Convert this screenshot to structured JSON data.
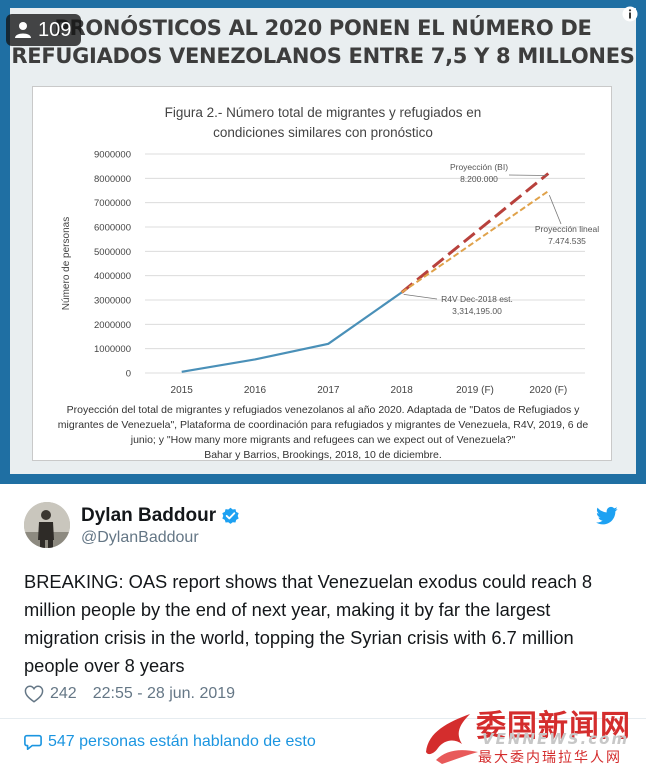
{
  "media": {
    "view_count": "109",
    "title_line1": "PRONÓSTICOS AL 2020 PONEN EL NÚMERO DE",
    "title_line2": "REFUGIADOS VENEZOLANOS ENTRE 7,5 Y 8 MILLONES",
    "caption_lines": [
      "Proyección del total de migrantes y refugiados venezolanos al año 2020. Adaptada de \"Datos de Refugiados y",
      "migrantes de Venezuela\", Plataforma de coordinación para refugiados y migrantes de Venezuela, R4V, 2019, 6 de",
      "junio; y \"How many more migrants and refugees can we expect out of Venezuela?\"",
      "Bahar y Barrios, Brookings, 2018, 10 de diciembre."
    ]
  },
  "chart_data": {
    "type": "line",
    "title_line1": "Figura 2.- Número total de migrantes y refugiados en",
    "title_line2": "condiciones similares con pronóstico",
    "ylabel": "Número de personas",
    "categories": [
      "2015",
      "2016",
      "2017",
      "2018",
      "2019 (F)",
      "2020 (F)"
    ],
    "yticks": [
      "0",
      "1000000",
      "2000000",
      "3000000",
      "4000000",
      "5000000",
      "6000000",
      "7000000",
      "8000000",
      "9000000"
    ],
    "ylim": [
      0,
      9000000
    ],
    "series": [
      {
        "values": [
          50000,
          560000,
          1200000,
          3314195,
          null,
          null
        ],
        "color": "#4a90b8",
        "style": "solid"
      },
      {
        "values": [
          null,
          null,
          null,
          3314195,
          5757097,
          8200000
        ],
        "color": "#b8413c",
        "style": "dashed"
      },
      {
        "values": [
          null,
          null,
          null,
          3314195,
          5394365,
          7474535
        ],
        "color": "#e0a24a",
        "style": "dashed"
      }
    ],
    "annotations": [
      {
        "line1": "Proyección (BI)",
        "line2": "8.200.000"
      },
      {
        "line1": "Proyección lineal",
        "line2": "7.474.535"
      },
      {
        "line1": "R4V Dec-2018  est.",
        "line2": "3,314,195.00"
      }
    ],
    "grid": true
  },
  "tweet": {
    "name": "Dylan Baddour",
    "handle": "@DylanBaddour",
    "text": "BREAKING: OAS report shows that Venezuelan exodus could reach 8 million people by the end of next year, making it by far the largest migration crisis in the world, topping the Syrian crisis with 6.7 million people over 8 years",
    "likes": "242",
    "timestamp": "22:55 - 28 jun. 2019",
    "talking": "547 personas están hablando de esto"
  },
  "watermark": {
    "main": "委国新闻网",
    "url": "VENNEWS.com",
    "sub": "最大委内瑞拉华人网"
  },
  "colors": {
    "accent": "#1b95e0",
    "verified": "#1da1f2",
    "media_border": "#1f6fa3"
  }
}
